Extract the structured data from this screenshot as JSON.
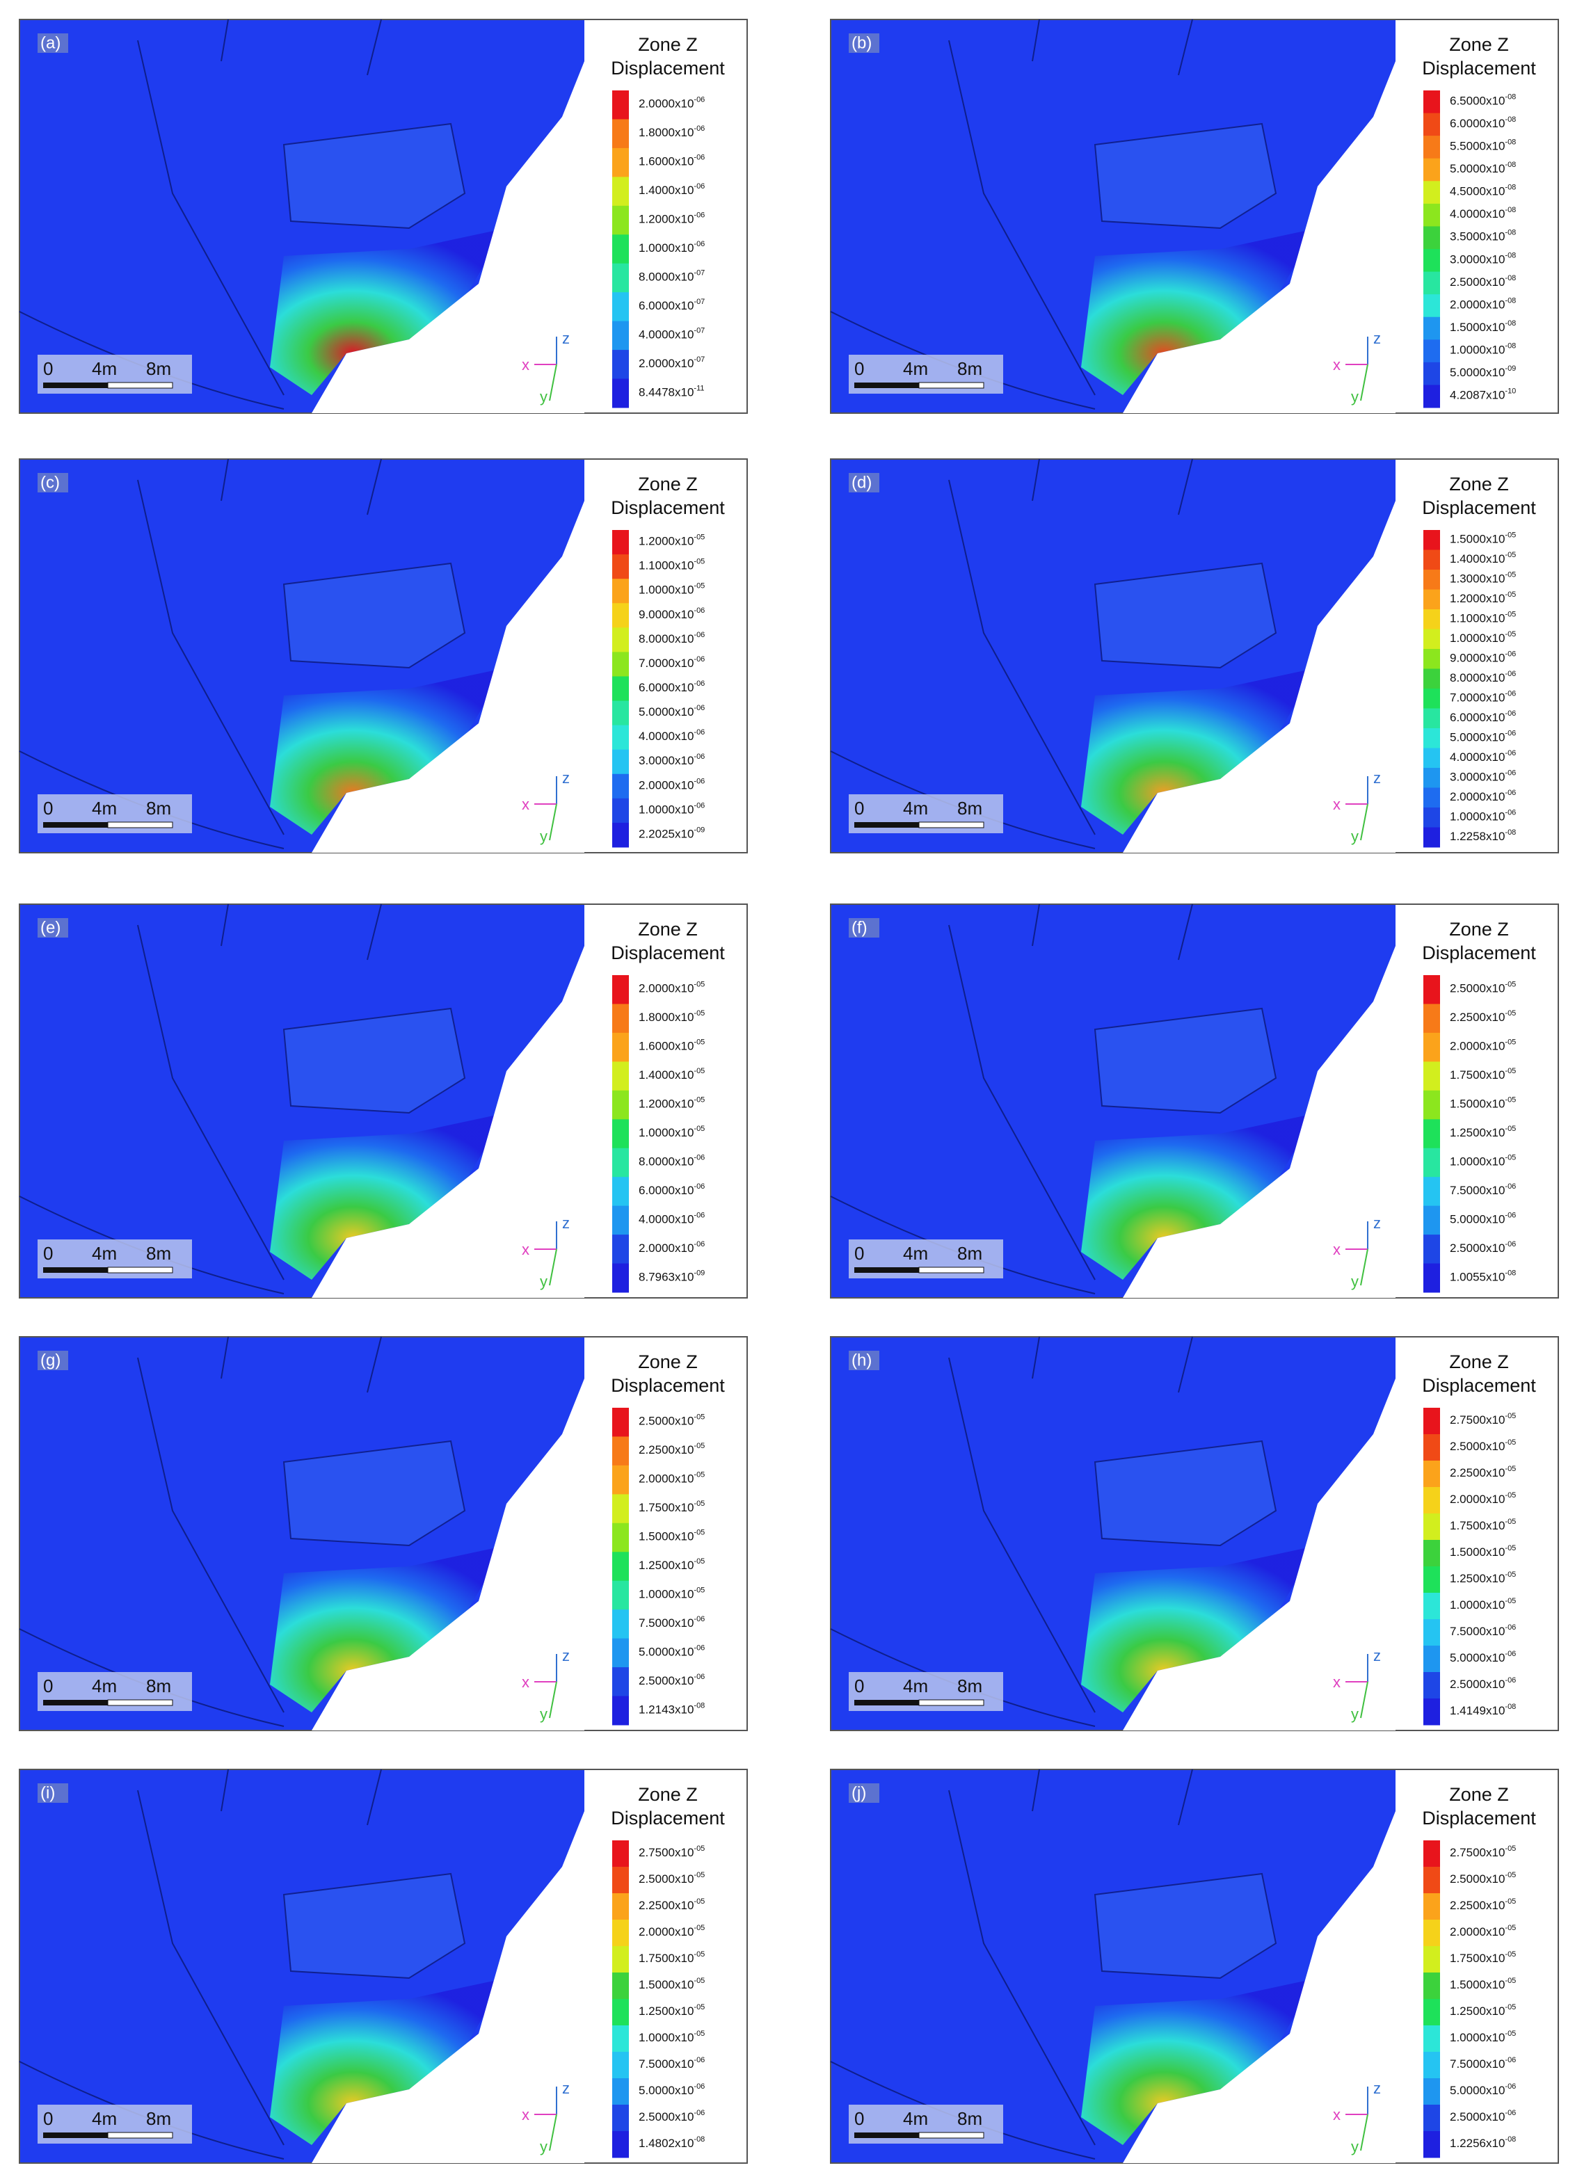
{
  "legend_title": [
    "Zone Z",
    "Displacement"
  ],
  "scale_bar": [
    "0",
    "4m",
    "8m"
  ],
  "axes": {
    "x": "x",
    "y": "y",
    "z": "z"
  },
  "palette": [
    "#e8141c",
    "#f04a16",
    "#f77a18",
    "#fba31b",
    "#f5d21a",
    "#d2ee1e",
    "#8ce61e",
    "#3cd23c",
    "#1ee15a",
    "#28e6a0",
    "#2ce6d8",
    "#25c4f2",
    "#1e96f0",
    "#1e6cf0",
    "#1e46e6",
    "#1e20e0"
  ],
  "panels": [
    {
      "label": "(a)",
      "legend_labels": [
        [
          "2.0000x10",
          "-06"
        ],
        [
          "1.8000x10",
          "-06"
        ],
        [
          "1.6000x10",
          "-06"
        ],
        [
          "1.4000x10",
          "-06"
        ],
        [
          "1.2000x10",
          "-06"
        ],
        [
          "1.0000x10",
          "-06"
        ],
        [
          "8.0000x10",
          "-07"
        ],
        [
          "6.0000x10",
          "-07"
        ],
        [
          "4.0000x10",
          "-07"
        ],
        [
          "2.0000x10",
          "-07"
        ],
        [
          "8.4478x10",
          "-11"
        ]
      ]
    },
    {
      "label": "(b)",
      "legend_labels": [
        [
          "6.5000x10",
          "-08"
        ],
        [
          "6.0000x10",
          "-08"
        ],
        [
          "5.5000x10",
          "-08"
        ],
        [
          "5.0000x10",
          "-08"
        ],
        [
          "4.5000x10",
          "-08"
        ],
        [
          "4.0000x10",
          "-08"
        ],
        [
          "3.5000x10",
          "-08"
        ],
        [
          "3.0000x10",
          "-08"
        ],
        [
          "2.5000x10",
          "-08"
        ],
        [
          "2.0000x10",
          "-08"
        ],
        [
          "1.5000x10",
          "-08"
        ],
        [
          "1.0000x10",
          "-08"
        ],
        [
          "5.0000x10",
          "-09"
        ],
        [
          "4.2087x10",
          "-10"
        ]
      ]
    },
    {
      "label": "(c)",
      "legend_labels": [
        [
          "1.2000x10",
          "-05"
        ],
        [
          "1.1000x10",
          "-05"
        ],
        [
          "1.0000x10",
          "-05"
        ],
        [
          "9.0000x10",
          "-06"
        ],
        [
          "8.0000x10",
          "-06"
        ],
        [
          "7.0000x10",
          "-06"
        ],
        [
          "6.0000x10",
          "-06"
        ],
        [
          "5.0000x10",
          "-06"
        ],
        [
          "4.0000x10",
          "-06"
        ],
        [
          "3.0000x10",
          "-06"
        ],
        [
          "2.0000x10",
          "-06"
        ],
        [
          "1.0000x10",
          "-06"
        ],
        [
          "2.2025x10",
          "-09"
        ]
      ]
    },
    {
      "label": "(d)",
      "legend_labels": [
        [
          "1.5000x10",
          "-05"
        ],
        [
          "1.4000x10",
          "-05"
        ],
        [
          "1.3000x10",
          "-05"
        ],
        [
          "1.2000x10",
          "-05"
        ],
        [
          "1.1000x10",
          "-05"
        ],
        [
          "1.0000x10",
          "-05"
        ],
        [
          "9.0000x10",
          "-06"
        ],
        [
          "8.0000x10",
          "-06"
        ],
        [
          "7.0000x10",
          "-06"
        ],
        [
          "6.0000x10",
          "-06"
        ],
        [
          "5.0000x10",
          "-06"
        ],
        [
          "4.0000x10",
          "-06"
        ],
        [
          "3.0000x10",
          "-06"
        ],
        [
          "2.0000x10",
          "-06"
        ],
        [
          "1.0000x10",
          "-06"
        ],
        [
          "1.2258x10",
          "-08"
        ]
      ]
    },
    {
      "label": "(e)",
      "legend_labels": [
        [
          "2.0000x10",
          "-05"
        ],
        [
          "1.8000x10",
          "-05"
        ],
        [
          "1.6000x10",
          "-05"
        ],
        [
          "1.4000x10",
          "-05"
        ],
        [
          "1.2000x10",
          "-05"
        ],
        [
          "1.0000x10",
          "-05"
        ],
        [
          "8.0000x10",
          "-06"
        ],
        [
          "6.0000x10",
          "-06"
        ],
        [
          "4.0000x10",
          "-06"
        ],
        [
          "2.0000x10",
          "-06"
        ],
        [
          "8.7963x10",
          "-09"
        ]
      ]
    },
    {
      "label": "(f)",
      "legend_labels": [
        [
          "2.5000x10",
          "-05"
        ],
        [
          "2.2500x10",
          "-05"
        ],
        [
          "2.0000x10",
          "-05"
        ],
        [
          "1.7500x10",
          "-05"
        ],
        [
          "1.5000x10",
          "-05"
        ],
        [
          "1.2500x10",
          "-05"
        ],
        [
          "1.0000x10",
          "-05"
        ],
        [
          "7.5000x10",
          "-06"
        ],
        [
          "5.0000x10",
          "-06"
        ],
        [
          "2.5000x10",
          "-06"
        ],
        [
          "1.0055x10",
          "-08"
        ]
      ]
    },
    {
      "label": "(g)",
      "legend_labels": [
        [
          "2.5000x10",
          "-05"
        ],
        [
          "2.2500x10",
          "-05"
        ],
        [
          "2.0000x10",
          "-05"
        ],
        [
          "1.7500x10",
          "-05"
        ],
        [
          "1.5000x10",
          "-05"
        ],
        [
          "1.2500x10",
          "-05"
        ],
        [
          "1.0000x10",
          "-05"
        ],
        [
          "7.5000x10",
          "-06"
        ],
        [
          "5.0000x10",
          "-06"
        ],
        [
          "2.5000x10",
          "-06"
        ],
        [
          "1.2143x10",
          "-08"
        ]
      ]
    },
    {
      "label": "(h)",
      "legend_labels": [
        [
          "2.7500x10",
          "-05"
        ],
        [
          "2.5000x10",
          "-05"
        ],
        [
          "2.2500x10",
          "-05"
        ],
        [
          "2.0000x10",
          "-05"
        ],
        [
          "1.7500x10",
          "-05"
        ],
        [
          "1.5000x10",
          "-05"
        ],
        [
          "1.2500x10",
          "-05"
        ],
        [
          "1.0000x10",
          "-05"
        ],
        [
          "7.5000x10",
          "-06"
        ],
        [
          "5.0000x10",
          "-06"
        ],
        [
          "2.5000x10",
          "-06"
        ],
        [
          "1.4149x10",
          "-08"
        ]
      ]
    },
    {
      "label": "(i)",
      "legend_labels": [
        [
          "2.7500x10",
          "-05"
        ],
        [
          "2.5000x10",
          "-05"
        ],
        [
          "2.2500x10",
          "-05"
        ],
        [
          "2.0000x10",
          "-05"
        ],
        [
          "1.7500x10",
          "-05"
        ],
        [
          "1.5000x10",
          "-05"
        ],
        [
          "1.2500x10",
          "-05"
        ],
        [
          "1.0000x10",
          "-05"
        ],
        [
          "7.5000x10",
          "-06"
        ],
        [
          "5.0000x10",
          "-06"
        ],
        [
          "2.5000x10",
          "-06"
        ],
        [
          "1.4802x10",
          "-08"
        ]
      ]
    },
    {
      "label": "(j)",
      "legend_labels": [
        [
          "2.7500x10",
          "-05"
        ],
        [
          "2.5000x10",
          "-05"
        ],
        [
          "2.2500x10",
          "-05"
        ],
        [
          "2.0000x10",
          "-05"
        ],
        [
          "1.7500x10",
          "-05"
        ],
        [
          "1.5000x10",
          "-05"
        ],
        [
          "1.2500x10",
          "-05"
        ],
        [
          "1.0000x10",
          "-05"
        ],
        [
          "7.5000x10",
          "-06"
        ],
        [
          "5.0000x10",
          "-06"
        ],
        [
          "2.5000x10",
          "-06"
        ],
        [
          "1.2256x10",
          "-08"
        ]
      ]
    }
  ]
}
